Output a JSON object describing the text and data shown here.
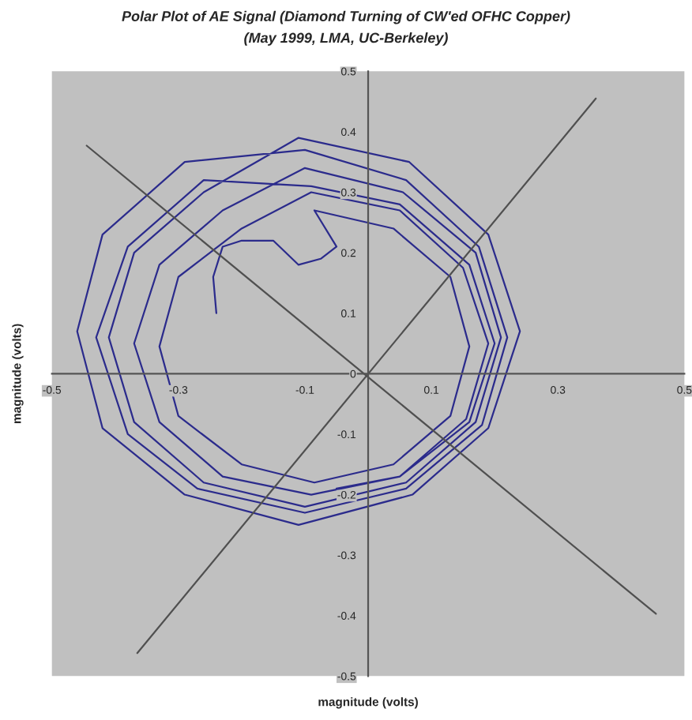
{
  "chart_data": {
    "type": "line",
    "title": "Polar Plot of AE Signal (Diamond Turning of CW'ed OFHC Copper)",
    "subtitle": "(May 1999, LMA, UC-Berkeley)",
    "xlabel": "magnitude (volts)",
    "ylabel": "magnitude (volts)",
    "xlim": [
      -0.5,
      0.5
    ],
    "xticks": [
      -0.5,
      -0.3,
      -0.1,
      0.1,
      0.3,
      0.5
    ],
    "ylim": [
      -0.5,
      0.5
    ],
    "yticks": [
      -0.5,
      -0.4,
      -0.3,
      -0.2,
      -0.1,
      0,
      0.1,
      0.2,
      0.3,
      0.4,
      0.5
    ],
    "grid": false,
    "marker": "none",
    "line_style": "solid",
    "series": [
      {
        "color": "#2b2b8c",
        "x": [
          -0.24,
          -0.245,
          -0.23,
          -0.2,
          -0.15,
          -0.11,
          -0.075,
          -0.05,
          -0.085,
          0.04,
          0.13,
          0.16,
          0.13,
          0.04,
          -0.085,
          -0.2,
          -0.3,
          -0.33,
          -0.3,
          -0.2,
          -0.09,
          0.05,
          0.15,
          0.19,
          0.155,
          0.05,
          -0.09,
          -0.23,
          -0.33,
          -0.37,
          -0.33,
          -0.23,
          -0.1,
          0.055,
          0.17,
          0.21,
          0.17,
          0.06,
          -0.1,
          -0.26,
          -0.37,
          -0.41,
          -0.37,
          -0.26,
          -0.11,
          0.065,
          0.19,
          0.24,
          0.19,
          0.07,
          -0.11,
          -0.29,
          -0.42,
          -0.46,
          -0.42,
          -0.29,
          -0.1,
          0.06,
          0.175,
          0.22,
          0.18,
          0.06,
          -0.1,
          -0.27,
          -0.38,
          -0.43,
          -0.38,
          -0.26,
          -0.09,
          0.05,
          0.16,
          0.2,
          0.16,
          0.05,
          -0.05
        ],
        "values": [
          0.1,
          0.16,
          0.21,
          0.22,
          0.22,
          0.18,
          0.19,
          0.21,
          0.27,
          0.24,
          0.16,
          0.045,
          -0.07,
          -0.15,
          -0.18,
          -0.15,
          -0.07,
          0.045,
          0.16,
          0.24,
          0.3,
          0.27,
          0.175,
          0.05,
          -0.075,
          -0.17,
          -0.2,
          -0.17,
          -0.08,
          0.05,
          0.18,
          0.27,
          0.34,
          0.3,
          0.2,
          0.06,
          -0.08,
          -0.18,
          -0.22,
          -0.18,
          -0.08,
          0.06,
          0.2,
          0.3,
          0.39,
          0.35,
          0.23,
          0.07,
          -0.09,
          -0.2,
          -0.25,
          -0.2,
          -0.09,
          0.07,
          0.23,
          0.35,
          0.37,
          0.32,
          0.21,
          0.06,
          -0.085,
          -0.19,
          -0.23,
          -0.19,
          -0.1,
          0.06,
          0.21,
          0.32,
          0.31,
          0.28,
          0.18,
          0.05,
          -0.08,
          -0.17,
          -0.19
        ]
      },
      {
        "color": "#505050",
        "x": [
          -0.445,
          0.455
        ],
        "values": [
          0.377,
          -0.397
        ]
      },
      {
        "color": "#505050",
        "x": [
          -0.365,
          0.36
        ],
        "values": [
          -0.462,
          0.455
        ]
      }
    ]
  }
}
